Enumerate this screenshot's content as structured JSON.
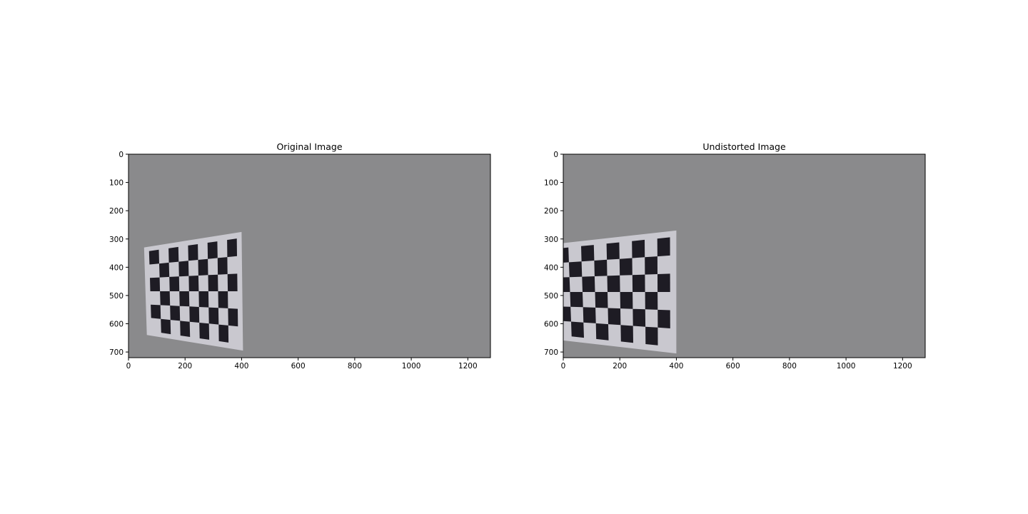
{
  "chart_data": [
    {
      "type": "image",
      "title": "Original Image",
      "xlabel": "",
      "ylabel": "",
      "xlim": [
        0,
        1280
      ],
      "ylim": [
        720,
        0
      ],
      "xticks": [
        0,
        200,
        400,
        600,
        800,
        1000,
        1200
      ],
      "yticks": [
        0,
        100,
        200,
        300,
        400,
        500,
        600,
        700
      ],
      "image_content": "gray wall with black-and-white checkerboard calibration pattern at lower left",
      "checkerboard": {
        "rows": 6,
        "cols": 9,
        "corners": {
          "top_left": [
            55,
            330
          ],
          "top_right": [
            400,
            275
          ],
          "bottom_right": [
            405,
            695
          ],
          "bottom_left": [
            65,
            640
          ]
        }
      },
      "colors": {
        "wall": "#8a8a8c",
        "paper": "#c9c8cf",
        "square": "#1e1c24"
      }
    },
    {
      "type": "image",
      "title": "Undistorted Image",
      "xlabel": "",
      "ylabel": "",
      "xlim": [
        0,
        1280
      ],
      "ylim": [
        720,
        0
      ],
      "xticks": [
        0,
        200,
        400,
        600,
        800,
        1000,
        1200
      ],
      "yticks": [
        0,
        100,
        200,
        300,
        400,
        500,
        600,
        700
      ],
      "image_content": "undistorted view of the same gray wall with checkerboard pattern, shifted to the left edge",
      "checkerboard": {
        "rows": 6,
        "cols": 9,
        "corners": {
          "top_left": [
            -50,
            320
          ],
          "top_right": [
            400,
            270
          ],
          "bottom_right": [
            400,
            705
          ],
          "bottom_left": [
            -35,
            655
          ]
        }
      },
      "colors": {
        "wall": "#8a8a8c",
        "paper": "#c9c8cf",
        "square": "#1e1c24"
      }
    }
  ]
}
